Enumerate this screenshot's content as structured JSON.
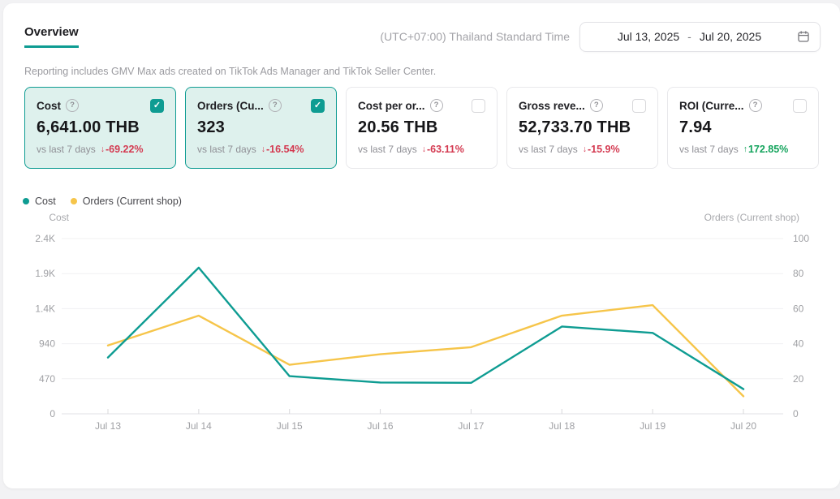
{
  "colors": {
    "accent": "#0e9c92",
    "cost_line": "#0e9c92",
    "orders_line": "#f6c54a",
    "red": "#d43a51",
    "green": "#12a35b"
  },
  "icons": {
    "help_glyph": "?",
    "check_glyph": "✓",
    "arrow_up": "↑",
    "arrow_down": "↓"
  },
  "header": {
    "tab": "Overview",
    "timezone": "(UTC+07:00) Thailand Standard Time",
    "date_range": {
      "start": "Jul 13, 2025",
      "separator": "-",
      "end": "Jul 20, 2025"
    }
  },
  "subtitle": "Reporting includes GMV Max ads created on TikTok Ads Manager and TikTok Seller Center.",
  "metric_cards": [
    {
      "title": "Cost",
      "value": "6,641.00 THB",
      "compare_label": "vs last 7 days",
      "change": "-69.22%",
      "direction": "down",
      "selected": true
    },
    {
      "title": "Orders (Cu...",
      "value": "323",
      "compare_label": "vs last 7 days",
      "change": "-16.54%",
      "direction": "down",
      "selected": true
    },
    {
      "title": "Cost per or...",
      "value": "20.56 THB",
      "compare_label": "vs last 7 days",
      "change": "-63.11%",
      "direction": "down",
      "selected": false
    },
    {
      "title": "Gross reve...",
      "value": "52,733.70 THB",
      "compare_label": "vs last 7 days",
      "change": "-15.9%",
      "direction": "down",
      "selected": false
    },
    {
      "title": "ROI (Curre...",
      "value": "7.94",
      "compare_label": "vs last 7 days",
      "change": "172.85%",
      "direction": "up",
      "selected": false
    }
  ],
  "legend": [
    {
      "label": "Cost",
      "color": "#0e9c92"
    },
    {
      "label": "Orders (Current shop)",
      "color": "#f6c54a"
    }
  ],
  "chart_data": {
    "type": "line",
    "x": [
      "Jul 13",
      "Jul 14",
      "Jul 15",
      "Jul 16",
      "Jul 17",
      "Jul 18",
      "Jul 19",
      "Jul 20"
    ],
    "series": [
      {
        "name": "Cost",
        "axis": "left",
        "color": "#0e9c92",
        "values": [
          755,
          1960,
          505,
          420,
          415,
          1170,
          1085,
          331
        ]
      },
      {
        "name": "Orders (Current shop)",
        "axis": "right",
        "color": "#f6c54a",
        "values": [
          39,
          56,
          28,
          34,
          38,
          56,
          62,
          10
        ]
      }
    ],
    "left_axis": {
      "label": "Cost",
      "ticks": [
        "0",
        "470",
        "940",
        "1.4K",
        "1.9K",
        "2.4K"
      ],
      "tick_values": [
        0,
        470,
        940,
        1410,
        1880,
        2350
      ],
      "max": 2350
    },
    "right_axis": {
      "label": "Orders (Current shop)",
      "ticks": [
        "0",
        "20",
        "40",
        "60",
        "80",
        "100"
      ],
      "max": 100
    },
    "grid": true,
    "legend_position": "top-left"
  }
}
